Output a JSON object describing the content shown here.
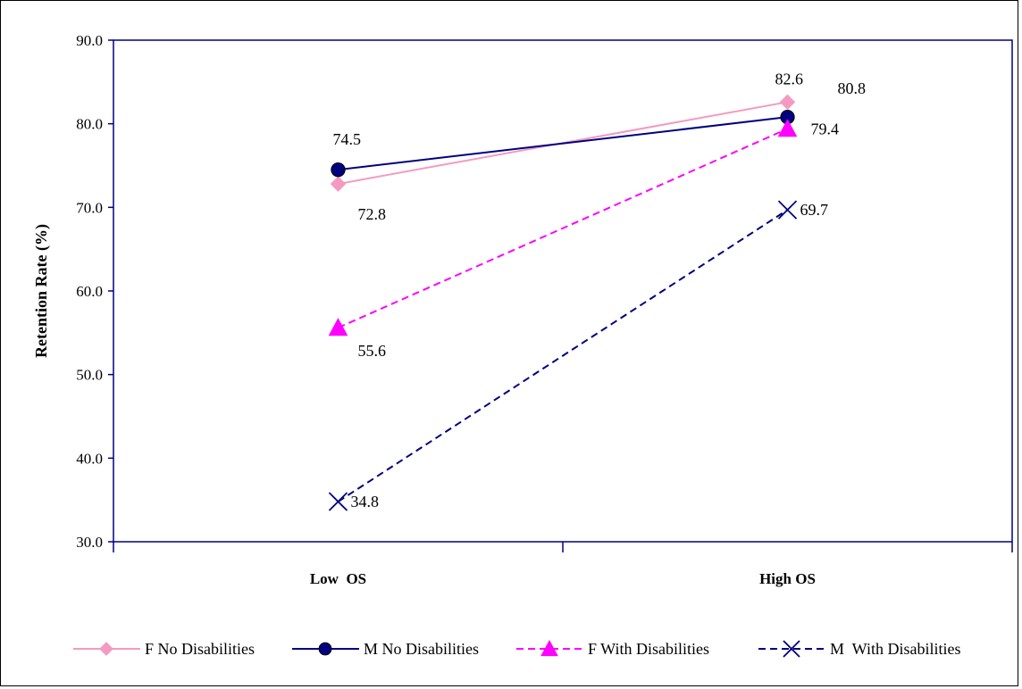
{
  "chart_data": {
    "type": "line",
    "categories": [
      "Low  OS",
      "High OS"
    ],
    "ylabel": "Retention Rate (%)",
    "xlabel": "",
    "title": "",
    "ylim": [
      30,
      90
    ],
    "yticks": [
      "30.0",
      "40.0",
      "50.0",
      "60.0",
      "70.0",
      "80.0",
      "90.0"
    ],
    "grid": false,
    "legend_position": "bottom",
    "series": [
      {
        "name": "F No Disabilities",
        "values": [
          72.8,
          82.6
        ],
        "labels": [
          "72.8",
          "82.6"
        ],
        "color": "#f49ac1",
        "dash": "solid",
        "marker": "diamond"
      },
      {
        "name": "M No Disabilities",
        "values": [
          74.5,
          80.8
        ],
        "labels": [
          "74.5",
          "80.8"
        ],
        "color": "#000080",
        "dash": "solid",
        "marker": "circle"
      },
      {
        "name": "F With Disabilities",
        "values": [
          55.6,
          79.4
        ],
        "labels": [
          "55.6",
          "79.4"
        ],
        "color": "#ff00ff",
        "dash": "dashed",
        "marker": "triangle"
      },
      {
        "name": "M  With Disabilities",
        "values": [
          34.8,
          69.7
        ],
        "labels": [
          "34.8",
          "69.7"
        ],
        "color": "#000080",
        "dash": "dashed",
        "marker": "x"
      }
    ]
  }
}
